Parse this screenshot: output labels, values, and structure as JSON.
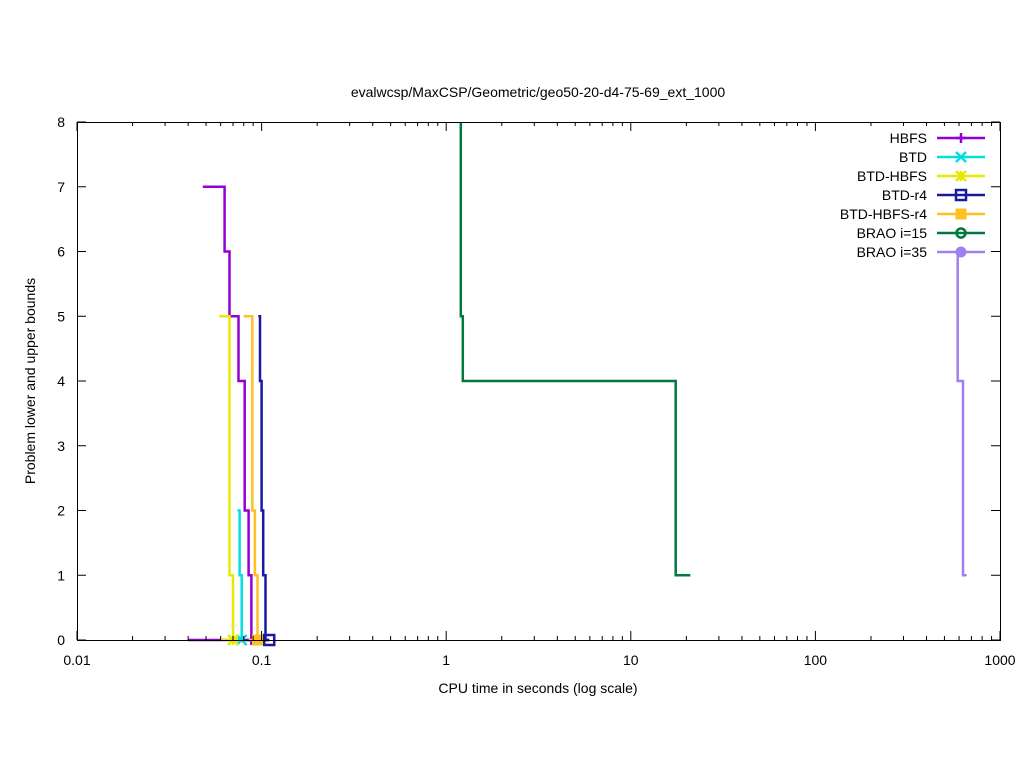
{
  "chart_data": {
    "type": "line",
    "title": "evalwcsp/MaxCSP/Geometric/geo50-20-d4-75-69_ext_1000",
    "xlabel": "CPU time in seconds (log scale)",
    "ylabel": "Problem lower and upper bounds",
    "x_scale": "log",
    "xlim": [
      0.01,
      1000
    ],
    "ylim": [
      0,
      8
    ],
    "x_ticks": [
      {
        "value": 0.01,
        "label": "0.01"
      },
      {
        "value": 0.1,
        "label": "0.1"
      },
      {
        "value": 1,
        "label": "1"
      },
      {
        "value": 10,
        "label": "10"
      },
      {
        "value": 100,
        "label": "100"
      },
      {
        "value": 1000,
        "label": "1000"
      }
    ],
    "y_ticks": [
      {
        "value": 0,
        "label": "0"
      },
      {
        "value": 1,
        "label": "1"
      },
      {
        "value": 2,
        "label": "2"
      },
      {
        "value": 3,
        "label": "3"
      },
      {
        "value": 4,
        "label": "4"
      },
      {
        "value": 5,
        "label": "5"
      },
      {
        "value": 6,
        "label": "6"
      },
      {
        "value": 7,
        "label": "7"
      },
      {
        "value": 8,
        "label": "8"
      }
    ],
    "grid": false,
    "legend_position": "top-right",
    "series": [
      {
        "name": "HBFS",
        "color": "#9400d3",
        "marker": "plus",
        "upper": [
          [
            0.048,
            7
          ],
          [
            0.063,
            7
          ],
          [
            0.063,
            6
          ],
          [
            0.067,
            6
          ],
          [
            0.067,
            5
          ],
          [
            0.075,
            5
          ],
          [
            0.075,
            4
          ],
          [
            0.081,
            4
          ],
          [
            0.081,
            2
          ],
          [
            0.085,
            2
          ],
          [
            0.085,
            1
          ],
          [
            0.088,
            1
          ],
          [
            0.088,
            0
          ]
        ],
        "lower": [
          [
            0.04,
            0
          ],
          [
            0.088,
            0
          ]
        ]
      },
      {
        "name": "BTD",
        "color": "#00e0e0",
        "marker": "cross",
        "upper": [
          [
            0.074,
            2
          ],
          [
            0.076,
            2
          ],
          [
            0.076,
            1
          ],
          [
            0.078,
            1
          ],
          [
            0.078,
            0
          ]
        ],
        "lower": [
          [
            0.07,
            0
          ],
          [
            0.078,
            0
          ]
        ]
      },
      {
        "name": "BTD-HBFS",
        "color": "#e8e800",
        "marker": "star",
        "upper": [
          [
            0.059,
            5
          ],
          [
            0.067,
            5
          ],
          [
            0.067,
            1
          ],
          [
            0.07,
            1
          ],
          [
            0.07,
            0
          ]
        ],
        "lower": [
          [
            0.06,
            0
          ],
          [
            0.07,
            0
          ]
        ]
      },
      {
        "name": "BTD-r4",
        "color": "#1a1aa0",
        "marker": "box",
        "upper": [
          [
            0.096,
            5
          ],
          [
            0.098,
            5
          ],
          [
            0.098,
            4
          ],
          [
            0.1,
            4
          ],
          [
            0.1,
            2
          ],
          [
            0.102,
            2
          ],
          [
            0.102,
            1
          ],
          [
            0.105,
            1
          ],
          [
            0.105,
            0
          ],
          [
            0.11,
            0
          ]
        ],
        "lower": [
          [
            0.085,
            0
          ],
          [
            0.11,
            0
          ]
        ]
      },
      {
        "name": "BTD-HBFS-r4",
        "color": "#ffc020",
        "marker": "filled-box",
        "upper": [
          [
            0.08,
            5
          ],
          [
            0.089,
            5
          ],
          [
            0.089,
            2
          ],
          [
            0.092,
            2
          ],
          [
            0.092,
            1
          ],
          [
            0.095,
            1
          ],
          [
            0.095,
            0
          ]
        ],
        "lower": [
          [
            0.085,
            0
          ],
          [
            0.095,
            0
          ]
        ]
      },
      {
        "name": "BRAO i=15",
        "color": "#007840",
        "marker": "circle",
        "upper": [
          [
            1.2,
            8
          ],
          [
            1.2,
            5
          ],
          [
            1.23,
            5
          ],
          [
            1.23,
            4
          ],
          [
            17.5,
            4
          ],
          [
            17.5,
            1
          ],
          [
            21,
            1
          ]
        ],
        "lower": []
      },
      {
        "name": "BRAO i=35",
        "color": "#a080f0",
        "marker": "filled-circle",
        "upper": [
          [
            590,
            5
          ],
          [
            590,
            4
          ],
          [
            630,
            4
          ],
          [
            630,
            1
          ],
          [
            660,
            1
          ]
        ],
        "lower": []
      }
    ]
  }
}
